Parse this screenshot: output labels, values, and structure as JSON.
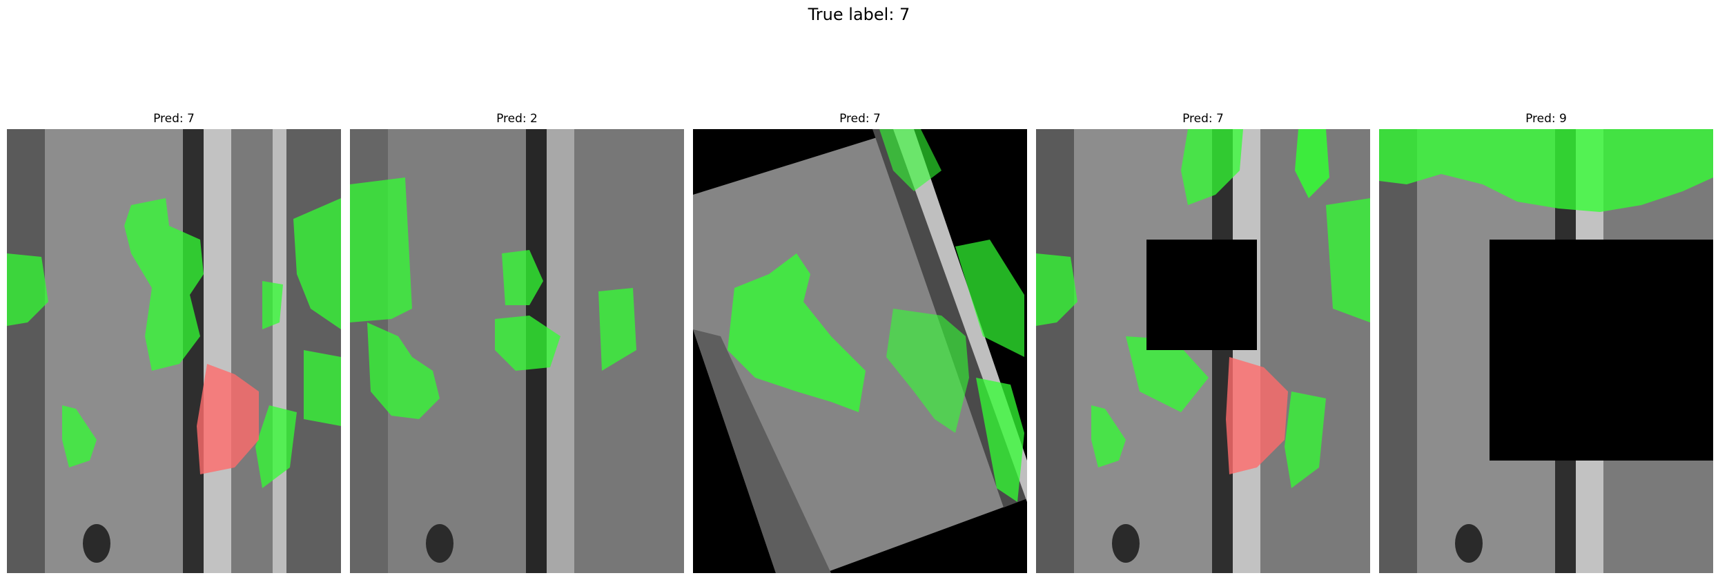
{
  "suptitle": "True label: 7",
  "panels": [
    {
      "title": "Pred: 7",
      "variant": "original"
    },
    {
      "title": "Pred: 2",
      "variant": "noisy"
    },
    {
      "title": "Pred: 7",
      "variant": "rotated"
    },
    {
      "title": "Pred: 7",
      "variant": "small-occlusion"
    },
    {
      "title": "Pred: 9",
      "variant": "large-occlusion"
    }
  ],
  "colors": {
    "positive_overlay": "#33ff33",
    "negative_overlay": "#ff6b6b",
    "occluder": "#000000",
    "bark": "#8a8a8a"
  }
}
